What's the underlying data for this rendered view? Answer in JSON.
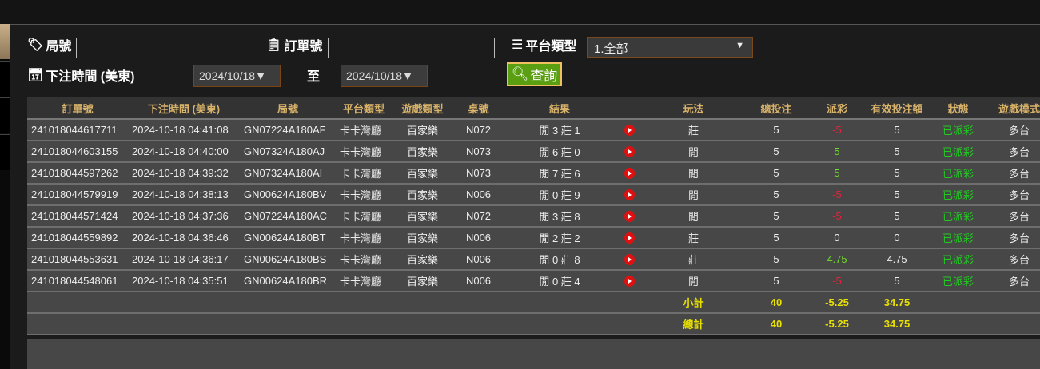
{
  "filters": {
    "round_label": "局號",
    "round_value": "",
    "order_label": "訂單號",
    "order_value": "",
    "platform_label": "平台類型",
    "platform_value": "1.全部",
    "time_label": "下注時間 (美東)",
    "date_from": "2024/10/18▼",
    "to_label": "至",
    "date_to": "2024/10/18▼",
    "query_label": "查詢"
  },
  "table": {
    "headers": [
      "訂單號",
      "下注時間 (美東)",
      "局號",
      "平台類型",
      "遊戲類型",
      "桌號",
      "結果",
      "",
      "玩法",
      "總投注",
      "派彩",
      "有效投注額",
      "狀態",
      "遊戲模式"
    ],
    "rows": [
      [
        "241018044617711",
        "2024-10-18 04:41:08",
        "GN07224A180AF",
        "卡卡灣廳",
        "百家樂",
        "N072",
        "閒 3 莊 1",
        "莊",
        "5",
        "-5",
        "5",
        "已派彩",
        "多台"
      ],
      [
        "241018044603155",
        "2024-10-18 04:40:00",
        "GN07324A180AJ",
        "卡卡灣廳",
        "百家樂",
        "N073",
        "閒 6 莊 0",
        "閒",
        "5",
        "5",
        "5",
        "已派彩",
        "多台"
      ],
      [
        "241018044597262",
        "2024-10-18 04:39:32",
        "GN07324A180AI",
        "卡卡灣廳",
        "百家樂",
        "N073",
        "閒 7 莊 6",
        "閒",
        "5",
        "5",
        "5",
        "已派彩",
        "多台"
      ],
      [
        "241018044579919",
        "2024-10-18 04:38:13",
        "GN00624A180BV",
        "卡卡灣廳",
        "百家樂",
        "N006",
        "閒 0 莊 9",
        "閒",
        "5",
        "-5",
        "5",
        "已派彩",
        "多台"
      ],
      [
        "241018044571424",
        "2024-10-18 04:37:36",
        "GN07224A180AC",
        "卡卡灣廳",
        "百家樂",
        "N072",
        "閒 3 莊 8",
        "閒",
        "5",
        "-5",
        "5",
        "已派彩",
        "多台"
      ],
      [
        "241018044559892",
        "2024-10-18 04:36:46",
        "GN00624A180BT",
        "卡卡灣廳",
        "百家樂",
        "N006",
        "閒 2 莊 2",
        "莊",
        "5",
        "0",
        "0",
        "已派彩",
        "多台"
      ],
      [
        "241018044553631",
        "2024-10-18 04:36:17",
        "GN00624A180BS",
        "卡卡灣廳",
        "百家樂",
        "N006",
        "閒 0 莊 8",
        "莊",
        "5",
        "4.75",
        "4.75",
        "已派彩",
        "多台"
      ],
      [
        "241018044548061",
        "2024-10-18 04:35:51",
        "GN00624A180BR",
        "卡卡灣廳",
        "百家樂",
        "N006",
        "閒 0 莊 4",
        "閒",
        "5",
        "-5",
        "5",
        "已派彩",
        "多台"
      ]
    ],
    "subtotal": {
      "label": "小計",
      "bet": "40",
      "payout": "-5.25",
      "valid": "34.75"
    },
    "total": {
      "label": "總計",
      "bet": "40",
      "payout": "-5.25",
      "valid": "34.75"
    }
  },
  "colors": {
    "negative": "#e0243c",
    "positive": "#6ddc2a",
    "status": "#20cc20",
    "header_text": "#d9b36a",
    "sum_text": "#e8e000"
  }
}
